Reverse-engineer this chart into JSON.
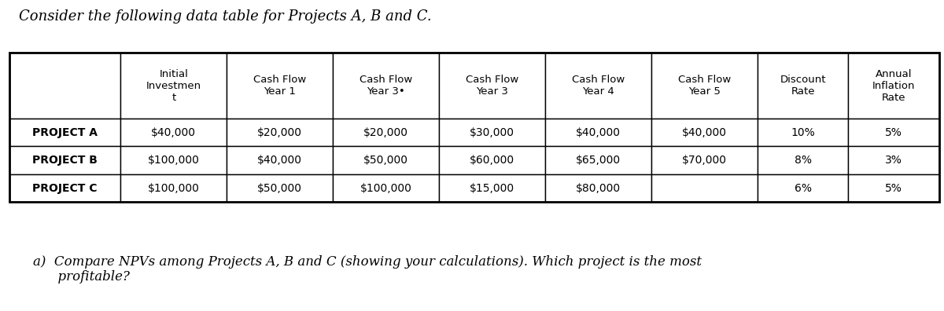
{
  "title": "Consider the following data table for Projects A, B and C.",
  "col_headers": [
    "Initial\nInvestmen\nt",
    "Cash Flow\nYear 1",
    "Cash Flow\nYear 3•",
    "Cash Flow\nYear 3",
    "Cash Flow\nYear 4",
    "Cash Flow\nYear 5",
    "Discount\nRate",
    "Annual\nInflation\nRate"
  ],
  "row_labels": [
    "PROJECT A",
    "PROJECT B",
    "PROJECT C"
  ],
  "table_data": [
    [
      "$40,000",
      "$20,000",
      "$20,000",
      "$30,000",
      "$40,000",
      "$40,000",
      "10%",
      "5%"
    ],
    [
      "$100,000",
      "$40,000",
      "$50,000",
      "$60,000",
      "$65,000",
      "$70,000",
      "8%",
      "3%"
    ],
    [
      "$100,000",
      "$50,000",
      "$100,000",
      "$15,000",
      "$80,000",
      "",
      "6%",
      "5%"
    ]
  ],
  "footer_text": "a)  Compare NPVs among Projects A, B and C (showing your calculations). Which project is the most\n      profitable?",
  "bg_color": "#ffffff",
  "header_bg": "#ffffff",
  "cell_bg": "#ffffff",
  "border_color": "#000000",
  "text_color": "#000000",
  "title_fontsize": 13,
  "header_fontsize": 9.5,
  "cell_fontsize": 10,
  "row_label_fontsize": 10,
  "footer_fontsize": 12
}
